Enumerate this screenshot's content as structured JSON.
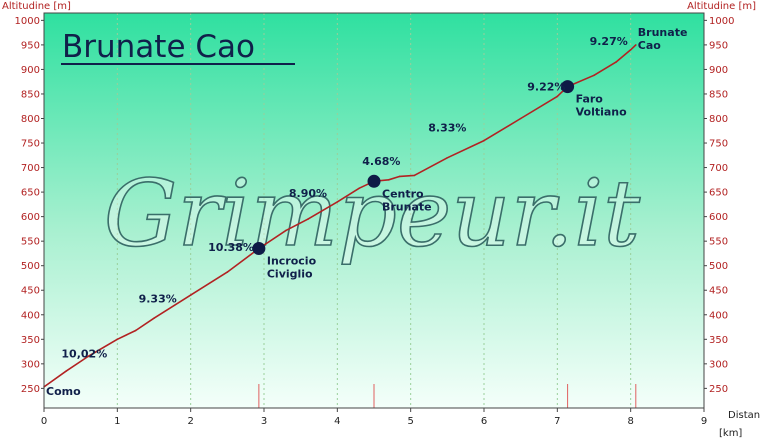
{
  "chart_data": {
    "type": "line",
    "title": "Brunate Cao",
    "ylabel_left": "Altitudine [m]",
    "ylabel_right": "Altitudine [m]",
    "xlabel": "Distanza",
    "xunit": "[km]",
    "xlim": [
      0,
      9
    ],
    "ylim": [
      210,
      1015
    ],
    "xticks": [
      "0",
      "1",
      "2",
      "3",
      "4",
      "5",
      "6",
      "7",
      "8",
      "9"
    ],
    "yticks": [
      "250",
      "300",
      "350",
      "400",
      "450",
      "500",
      "550",
      "600",
      "650",
      "700",
      "750",
      "800",
      "850",
      "900",
      "950",
      "1000"
    ],
    "grid": true,
    "series": [
      {
        "color": "#b22222",
        "x": [
          0,
          0.3,
          0.6,
          1.0,
          1.25,
          1.5,
          2.0,
          2.5,
          2.93,
          3.3,
          3.6,
          4.0,
          4.3,
          4.5,
          4.7,
          4.85,
          5.05,
          5.5,
          6.0,
          6.5,
          7.0,
          7.14,
          7.5,
          7.8,
          8.0,
          8.07
        ],
        "y": [
          253,
          285,
          315,
          350,
          368,
          393,
          440,
          487,
          535,
          572,
          595,
          630,
          658,
          672,
          675,
          682,
          684,
          720,
          755,
          800,
          845,
          865,
          888,
          915,
          940,
          950
        ]
      }
    ],
    "gradients": [
      {
        "label": "10,02%",
        "x": 0.55,
        "y": 313
      },
      {
        "label": "9.33%",
        "x": 1.55,
        "y": 425
      },
      {
        "label": "10.38%",
        "x": 2.55,
        "y": 530
      },
      {
        "label": "8.90%",
        "x": 3.6,
        "y": 640
      },
      {
        "label": "4.68%",
        "x": 4.6,
        "y": 705
      },
      {
        "label": "8.33%",
        "x": 5.5,
        "y": 773
      },
      {
        "label": "9.22%",
        "x": 6.85,
        "y": 857
      },
      {
        "label": "9.27%",
        "x": 7.7,
        "y": 950
      }
    ],
    "waypoints": [
      {
        "label_lines": [
          "Como"
        ],
        "x": 0,
        "y": 253,
        "marker": false,
        "tick": false
      },
      {
        "label_lines": [
          "Incrocio",
          "Civiglio"
        ],
        "x": 2.93,
        "y": 535,
        "marker": true,
        "tick": true
      },
      {
        "label_lines": [
          "Centro",
          "Brunate"
        ],
        "x": 4.5,
        "y": 672,
        "marker": true,
        "tick": true
      },
      {
        "label_lines": [
          "Faro",
          "Voltiano"
        ],
        "x": 7.14,
        "y": 865,
        "marker": true,
        "tick": true
      },
      {
        "label_lines": [
          "Brunate",
          "Cao"
        ],
        "x": 8.07,
        "y": 950,
        "marker": false,
        "tick": true
      }
    ],
    "watermark": "Grimpeur.it"
  }
}
